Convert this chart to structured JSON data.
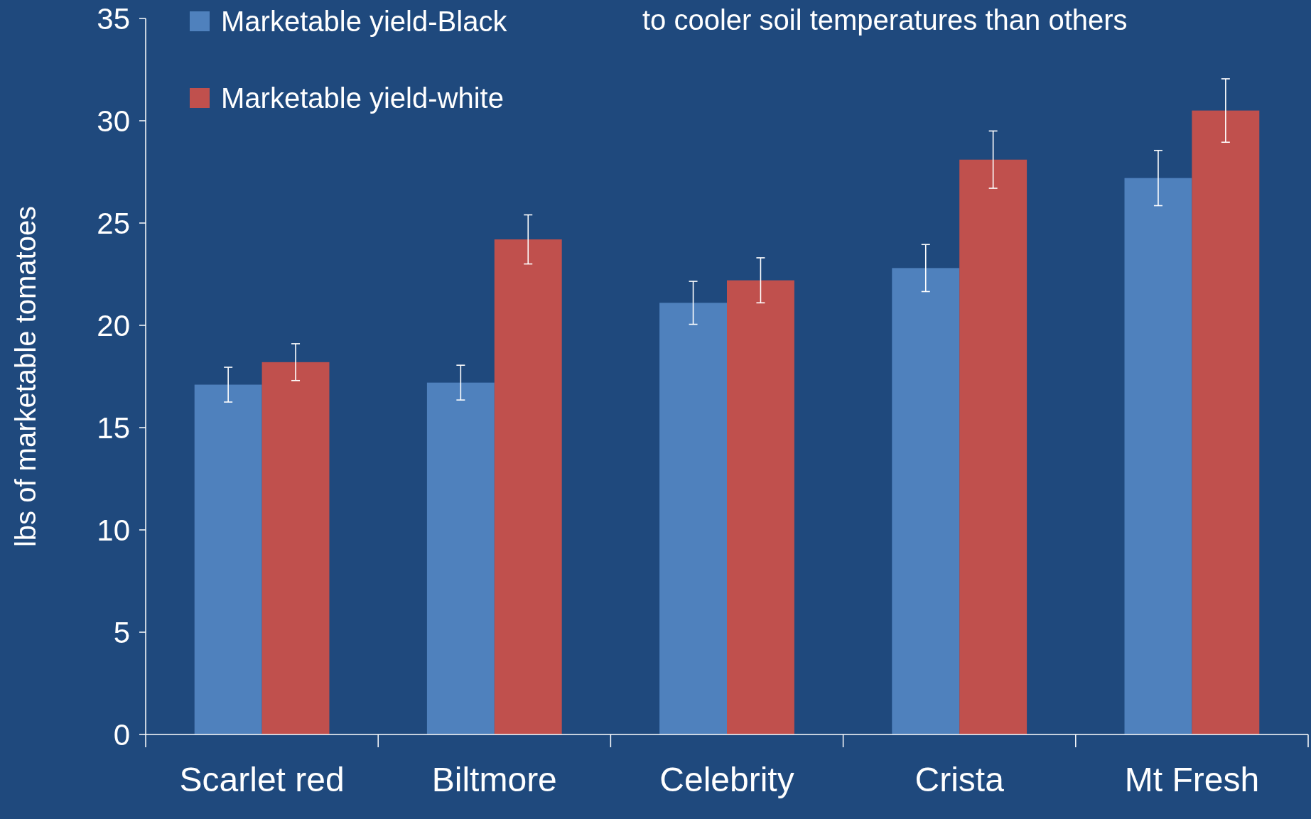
{
  "chart_data": {
    "type": "bar",
    "ylabel": "lbs of marketable tomatoes",
    "annotations": [
      "to cooler soil temperatures than others"
    ],
    "categories": [
      "Scarlet red",
      "Biltmore",
      "Celebrity",
      "Crista",
      "Mt Fresh"
    ],
    "series": [
      {
        "name": "Marketable yield-Black",
        "color": "#4f81bd",
        "values": [
          17.1,
          17.2,
          21.1,
          22.8,
          27.2
        ],
        "errors": [
          0.85,
          0.85,
          1.05,
          1.15,
          1.35
        ]
      },
      {
        "name": "Marketable yield-white",
        "color": "#c0504d",
        "values": [
          18.2,
          24.2,
          22.2,
          28.1,
          30.5
        ],
        "errors": [
          0.9,
          1.2,
          1.1,
          1.4,
          1.55
        ]
      }
    ],
    "ylim": [
      0,
      35
    ],
    "yticks": [
      0,
      5,
      10,
      15,
      20,
      25,
      30,
      35
    ],
    "grid": false,
    "legend": "top left"
  }
}
